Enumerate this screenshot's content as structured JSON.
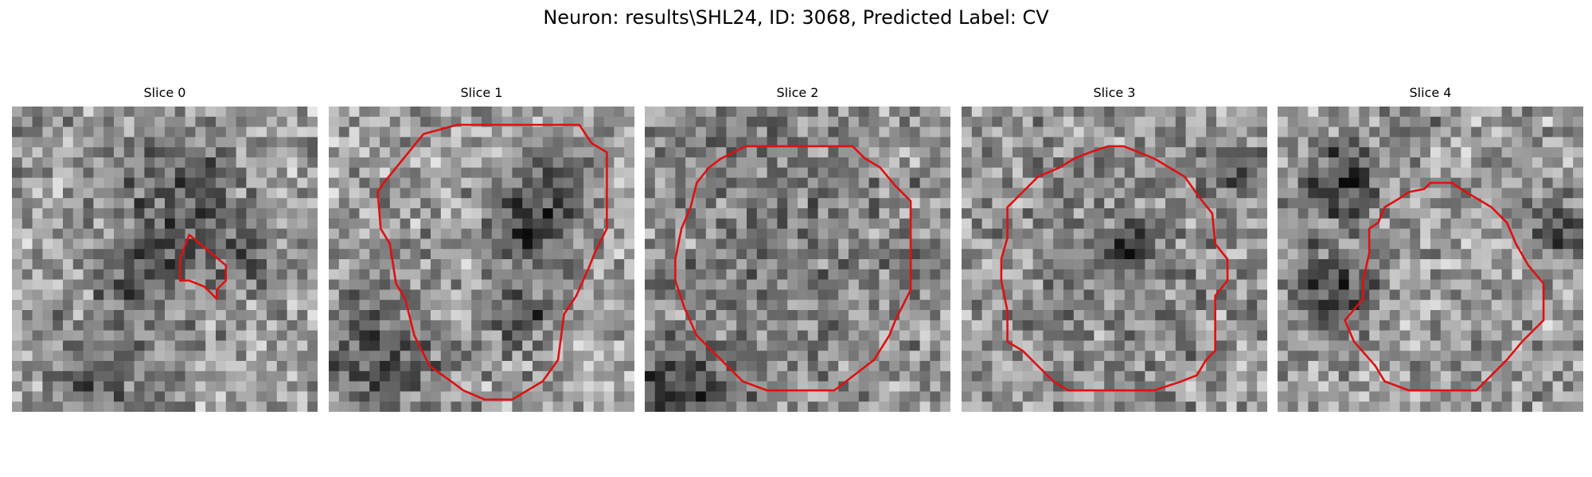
{
  "figure": {
    "title": "Neuron: results\\SHL24, ID: 3068, Predicted Label: CV"
  },
  "contour_color": "#e01010",
  "grid_size": 30,
  "slices": [
    {
      "title": "Slice 0",
      "seed": 11,
      "dark": [
        [
          0.44,
          0.54,
          0.11,
          -0.35
        ],
        [
          0.55,
          0.25,
          0.12,
          -0.28
        ],
        [
          0.3,
          0.9,
          0.12,
          -0.25
        ],
        [
          0.75,
          0.45,
          0.1,
          -0.2
        ]
      ],
      "contour": [
        [
          0.58,
          0.42
        ],
        [
          0.7,
          0.52
        ],
        [
          0.7,
          0.57
        ],
        [
          0.67,
          0.6
        ],
        [
          0.67,
          0.63
        ],
        [
          0.65,
          0.61
        ],
        [
          0.63,
          0.59
        ],
        [
          0.58,
          0.57
        ],
        [
          0.55,
          0.57
        ],
        [
          0.55,
          0.5
        ]
      ]
    },
    {
      "title": "Slice 1",
      "seed": 23,
      "dark": [
        [
          0.65,
          0.4,
          0.08,
          -0.4
        ],
        [
          0.63,
          0.68,
          0.07,
          -0.35
        ],
        [
          0.15,
          0.82,
          0.15,
          -0.3
        ],
        [
          0.75,
          0.25,
          0.08,
          -0.25
        ]
      ],
      "contour": [
        [
          0.31,
          0.09
        ],
        [
          0.42,
          0.06
        ],
        [
          0.82,
          0.06
        ],
        [
          0.86,
          0.12
        ],
        [
          0.91,
          0.15
        ],
        [
          0.91,
          0.4
        ],
        [
          0.87,
          0.48
        ],
        [
          0.85,
          0.53
        ],
        [
          0.81,
          0.62
        ],
        [
          0.77,
          0.68
        ],
        [
          0.75,
          0.83
        ],
        [
          0.7,
          0.9
        ],
        [
          0.6,
          0.96
        ],
        [
          0.51,
          0.96
        ],
        [
          0.44,
          0.93
        ],
        [
          0.4,
          0.9
        ],
        [
          0.33,
          0.85
        ],
        [
          0.28,
          0.75
        ],
        [
          0.25,
          0.63
        ],
        [
          0.22,
          0.58
        ],
        [
          0.2,
          0.45
        ],
        [
          0.17,
          0.4
        ],
        [
          0.16,
          0.28
        ],
        [
          0.18,
          0.25
        ]
      ]
    },
    {
      "title": "Slice 2",
      "seed": 37,
      "dark": [
        [
          0.5,
          0.5,
          0.4,
          -0.12
        ],
        [
          0.1,
          0.95,
          0.12,
          -0.35
        ],
        [
          0.3,
          0.12,
          0.08,
          -0.15
        ]
      ],
      "contour": [
        [
          0.33,
          0.13
        ],
        [
          0.35,
          0.13
        ],
        [
          0.68,
          0.13
        ],
        [
          0.72,
          0.17
        ],
        [
          0.77,
          0.2
        ],
        [
          0.82,
          0.26
        ],
        [
          0.87,
          0.31
        ],
        [
          0.87,
          0.6
        ],
        [
          0.82,
          0.7
        ],
        [
          0.8,
          0.75
        ],
        [
          0.75,
          0.83
        ],
        [
          0.62,
          0.93
        ],
        [
          0.55,
          0.93
        ],
        [
          0.53,
          0.93
        ],
        [
          0.4,
          0.93
        ],
        [
          0.32,
          0.9
        ],
        [
          0.25,
          0.83
        ],
        [
          0.17,
          0.75
        ],
        [
          0.13,
          0.66
        ],
        [
          0.1,
          0.57
        ],
        [
          0.1,
          0.5
        ],
        [
          0.12,
          0.4
        ],
        [
          0.15,
          0.33
        ],
        [
          0.17,
          0.25
        ],
        [
          0.21,
          0.2
        ],
        [
          0.25,
          0.17
        ]
      ]
    },
    {
      "title": "Slice 3",
      "seed": 49,
      "dark": [
        [
          0.55,
          0.47,
          0.06,
          -0.35
        ],
        [
          0.5,
          0.5,
          0.38,
          -0.1
        ],
        [
          0.9,
          0.2,
          0.08,
          -0.2
        ]
      ],
      "contour": [
        [
          0.32,
          0.2
        ],
        [
          0.37,
          0.17
        ],
        [
          0.42,
          0.15
        ],
        [
          0.48,
          0.13
        ],
        [
          0.53,
          0.13
        ],
        [
          0.58,
          0.15
        ],
        [
          0.63,
          0.17
        ],
        [
          0.68,
          0.2
        ],
        [
          0.73,
          0.23
        ],
        [
          0.78,
          0.3
        ],
        [
          0.82,
          0.35
        ],
        [
          0.83,
          0.45
        ],
        [
          0.87,
          0.5
        ],
        [
          0.87,
          0.57
        ],
        [
          0.83,
          0.62
        ],
        [
          0.83,
          0.8
        ],
        [
          0.8,
          0.83
        ],
        [
          0.77,
          0.88
        ],
        [
          0.72,
          0.9
        ],
        [
          0.63,
          0.93
        ],
        [
          0.5,
          0.93
        ],
        [
          0.35,
          0.93
        ],
        [
          0.3,
          0.9
        ],
        [
          0.2,
          0.8
        ],
        [
          0.15,
          0.77
        ],
        [
          0.15,
          0.67
        ],
        [
          0.13,
          0.57
        ],
        [
          0.13,
          0.5
        ],
        [
          0.15,
          0.43
        ],
        [
          0.15,
          0.33
        ],
        [
          0.2,
          0.28
        ],
        [
          0.25,
          0.23
        ]
      ]
    },
    {
      "title": "Slice 4",
      "seed": 61,
      "dark": [
        [
          0.22,
          0.25,
          0.09,
          -0.45
        ],
        [
          0.18,
          0.6,
          0.1,
          -0.35
        ],
        [
          0.93,
          0.4,
          0.08,
          -0.3
        ],
        [
          0.45,
          0.05,
          0.06,
          -0.25
        ]
      ],
      "contour": [
        [
          0.4,
          0.3
        ],
        [
          0.43,
          0.28
        ],
        [
          0.48,
          0.27
        ],
        [
          0.5,
          0.25
        ],
        [
          0.57,
          0.25
        ],
        [
          0.6,
          0.27
        ],
        [
          0.65,
          0.3
        ],
        [
          0.7,
          0.33
        ],
        [
          0.75,
          0.38
        ],
        [
          0.78,
          0.45
        ],
        [
          0.82,
          0.52
        ],
        [
          0.87,
          0.58
        ],
        [
          0.87,
          0.7
        ],
        [
          0.8,
          0.77
        ],
        [
          0.75,
          0.83
        ],
        [
          0.7,
          0.88
        ],
        [
          0.65,
          0.93
        ],
        [
          0.5,
          0.93
        ],
        [
          0.48,
          0.93
        ],
        [
          0.43,
          0.93
        ],
        [
          0.35,
          0.9
        ],
        [
          0.32,
          0.85
        ],
        [
          0.25,
          0.77
        ],
        [
          0.22,
          0.7
        ],
        [
          0.28,
          0.63
        ],
        [
          0.28,
          0.57
        ],
        [
          0.3,
          0.48
        ],
        [
          0.3,
          0.4
        ],
        [
          0.33,
          0.38
        ],
        [
          0.35,
          0.33
        ]
      ]
    }
  ]
}
